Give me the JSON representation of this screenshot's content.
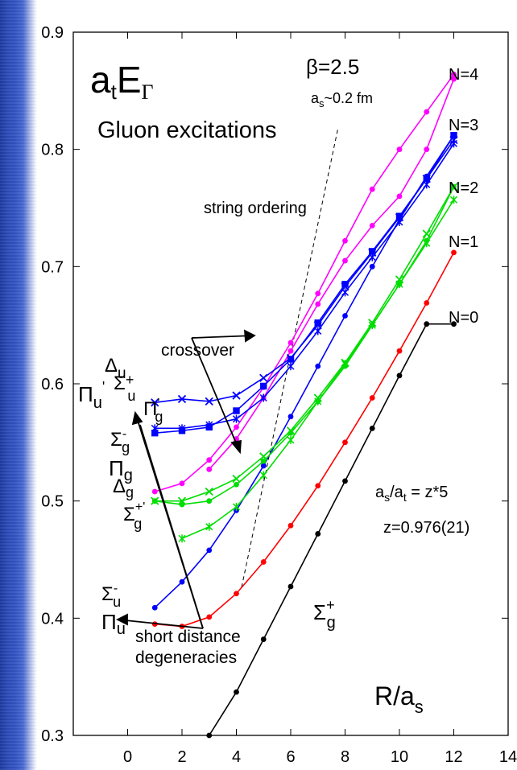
{
  "chart_data": {
    "type": "line",
    "title": "",
    "xlabel": "R/a_s",
    "ylabel": "a_tE_Γ",
    "xlim": [
      -2,
      14
    ],
    "ylim": [
      0.3,
      0.9
    ],
    "x_ticks": [
      0,
      2,
      4,
      6,
      8,
      10,
      12,
      14
    ],
    "y_ticks": [
      0.3,
      0.4,
      0.5,
      0.6,
      0.7,
      0.8,
      0.9
    ],
    "x_tick_labels": [
      "0",
      "2",
      "4",
      "6",
      "8",
      "10",
      "12",
      "14"
    ],
    "y_tick_labels": [
      "0.3",
      "0.4",
      "0.5",
      "0.6",
      "0.7",
      "0.8",
      "0.9"
    ],
    "grid": false,
    "series": [
      {
        "name": "Σg+",
        "color": "#000000",
        "marker": "dot",
        "x": [
          3,
          4,
          5,
          6,
          7,
          8,
          9,
          10,
          11,
          12
        ],
        "y": [
          0.3,
          0.337,
          0.382,
          0.427,
          0.472,
          0.517,
          0.562,
          0.607,
          0.651,
          0.651
        ]
      },
      {
        "name": "Πu",
        "color": "#ff0000",
        "marker": "dot",
        "x": [
          1,
          2,
          3,
          4,
          5,
          6,
          7,
          8,
          9,
          10,
          11,
          12
        ],
        "y": [
          0.395,
          0.393,
          0.401,
          0.421,
          0.448,
          0.479,
          0.513,
          0.55,
          0.588,
          0.628,
          0.669,
          0.712
        ]
      },
      {
        "name": "Σu-",
        "color": "#0000ff",
        "marker": "dot",
        "x": [
          1,
          2,
          3,
          4,
          5,
          6,
          7,
          8,
          9,
          10,
          11,
          12
        ],
        "y": [
          0.409,
          0.431,
          0.458,
          0.492,
          0.53,
          0.572,
          0.615,
          0.658,
          0.7,
          0.74,
          0.777,
          0.812
        ]
      },
      {
        "name": "Πg",
        "color": "#ff00ff",
        "marker": "dot",
        "x": [
          1,
          2,
          3,
          4,
          5,
          6,
          7,
          8,
          9,
          10,
          11,
          12
        ],
        "y": [
          0.508,
          0.515,
          0.535,
          0.563,
          0.597,
          0.635,
          0.677,
          0.722,
          0.766,
          0.8,
          0.832,
          0.864
        ]
      },
      {
        "name": "Π'g",
        "color": "#ff00ff",
        "marker": "dot",
        "x": [
          3,
          4,
          5,
          6,
          7,
          8,
          9,
          10,
          11,
          12
        ],
        "y": [
          0.527,
          0.553,
          0.588,
          0.628,
          0.668,
          0.705,
          0.735,
          0.76,
          0.8,
          0.86
        ]
      },
      {
        "name": "Δg",
        "color": "#00dd00",
        "marker": "x",
        "x": [
          1,
          2,
          3,
          4,
          5,
          6,
          7,
          8,
          9,
          10,
          11,
          12
        ],
        "y": [
          0.5,
          0.5,
          0.508,
          0.519,
          0.538,
          0.56,
          0.588,
          0.618,
          0.652,
          0.689,
          0.728,
          0.768
        ]
      },
      {
        "name": "Σg-",
        "color": "#00dd00",
        "marker": "dot",
        "x": [
          1,
          2,
          3,
          4,
          5,
          6,
          7,
          8,
          9,
          10,
          11,
          12
        ],
        "y": [
          0.5,
          0.497,
          0.5,
          0.514,
          0.534,
          0.558,
          0.585,
          0.615,
          0.65,
          0.685,
          0.722,
          0.768
        ]
      },
      {
        "name": "Σg+'",
        "color": "#00dd00",
        "marker": "star",
        "x": [
          2,
          3,
          4,
          5,
          6,
          7,
          8,
          9,
          10,
          11,
          12
        ],
        "y": [
          0.468,
          0.478,
          0.495,
          0.522,
          0.552,
          0.585,
          0.617,
          0.65,
          0.685,
          0.72,
          0.757
        ]
      },
      {
        "name": "Δu",
        "color": "#0000ff",
        "marker": "x",
        "x": [
          1,
          2,
          3,
          4,
          5,
          6,
          7,
          8,
          9,
          10,
          11,
          12
        ],
        "y": [
          0.584,
          0.587,
          0.585,
          0.59,
          0.605,
          0.622,
          0.65,
          0.683,
          0.712,
          0.742,
          0.775,
          0.808
        ]
      },
      {
        "name": "Πu",
        "color": "#0000ff",
        "marker": "square",
        "x": [
          1,
          2,
          3,
          4,
          5,
          6,
          7,
          8,
          9,
          10,
          11,
          12
        ],
        "y": [
          0.558,
          0.56,
          0.563,
          0.577,
          0.598,
          0.621,
          0.652,
          0.685,
          0.713,
          0.743,
          0.775,
          0.812
        ]
      },
      {
        "name": "Σu+",
        "color": "#0000ff",
        "marker": "star",
        "x": [
          1,
          2,
          3,
          4,
          5,
          6,
          7,
          8,
          9,
          10,
          11,
          12
        ],
        "y": [
          0.562,
          0.562,
          0.565,
          0.57,
          0.588,
          0.615,
          0.645,
          0.678,
          0.708,
          0.738,
          0.77,
          0.805
        ]
      }
    ]
  },
  "text": {
    "y_title_main": "a",
    "y_title_sub_t": "t",
    "y_title_E": "E",
    "y_title_sub_gamma": "Γ",
    "beta": "β=2.5",
    "spacing_a": "a",
    "spacing_sub": "s",
    "spacing_rest": "~0.2 fm",
    "gluon": "Gluon excitations",
    "string_ordering": "string ordering",
    "crossover": "crossover",
    "ratio_a": "a",
    "ratio_s": "s",
    "ratio_mid": "/a",
    "ratio_t": "t",
    "ratio_rest": " = z*5",
    "zval": "z=0.976(21)",
    "short1": "short distance",
    "short2": "degeneracies",
    "xaxis_R": "R/a",
    "xaxis_s": "s",
    "n4": "N=4",
    "n3": "N=3",
    "n2": "N=2",
    "n1": "N=1",
    "n0": "N=0",
    "lbl_delta_u": "Δ",
    "lbl_delta_u_sub": "u",
    "lbl_pi_u2": "Π",
    "lbl_pi_u2_sub": "u",
    "lbl_pi_u2_prime": "'",
    "lbl_sigma_u_plus": "Σ",
    "lbl_sigma_u_plus_sub": "u",
    "lbl_sigma_u_plus_sup": "+",
    "lbl_pi_gp": "Π",
    "lbl_pi_gp_sup": "'",
    "lbl_pi_gp_sub": "g",
    "lbl_sigma_gm": "Σ",
    "lbl_sigma_gm_sup": "-",
    "lbl_sigma_gm_sub": "g",
    "lbl_pi_g": "Π",
    "lbl_pi_g_sub": "g",
    "lbl_delta_g": "Δ",
    "lbl_delta_g_sub": "g",
    "lbl_sigma_gpp": "Σ",
    "lbl_sigma_gpp_sup": "+'",
    "lbl_sigma_gpp_sub": "g",
    "lbl_sigma_um": "Σ",
    "lbl_sigma_um_sup": "-",
    "lbl_sigma_um_sub": "u",
    "lbl_pi_u": "Π",
    "lbl_pi_u_sub": "u",
    "lbl_sigma_gp": "Σ",
    "lbl_sigma_gp_sup": "+",
    "lbl_sigma_gp_sub": "g"
  }
}
